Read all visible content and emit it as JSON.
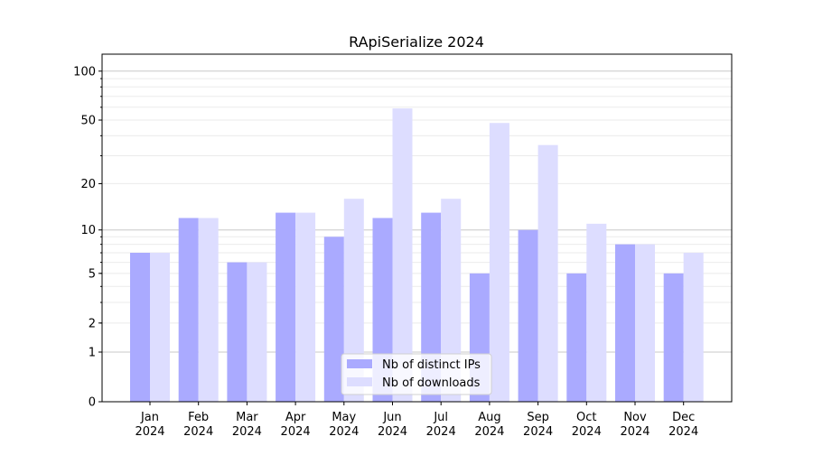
{
  "chart_data": {
    "type": "bar",
    "title": "RApiSerialize 2024",
    "xlabel": "",
    "ylabel": "",
    "y_scale": "log10(1+y)",
    "ylim": [
      0,
      127
    ],
    "y_ticks": [
      0,
      1,
      2,
      5,
      10,
      20,
      50,
      100
    ],
    "grid": true,
    "legend_position": "bottom-center",
    "categories": [
      "Jan\n2024",
      "Feb\n2024",
      "Mar\n2024",
      "Apr\n2024",
      "May\n2024",
      "Jun\n2024",
      "Jul\n2024",
      "Aug\n2024",
      "Sep\n2024",
      "Oct\n2024",
      "Nov\n2024",
      "Dec\n2024"
    ],
    "series": [
      {
        "name": "Nb of distinct IPs",
        "color": "#aaaaff",
        "values": [
          7,
          12,
          6,
          13,
          9,
          12,
          13,
          5,
          10,
          5,
          8,
          5
        ]
      },
      {
        "name": "Nb of downloads",
        "color": "#ddddff",
        "values": [
          7,
          12,
          6,
          13,
          16,
          59,
          16,
          48,
          35,
          11,
          8,
          7
        ]
      }
    ]
  }
}
